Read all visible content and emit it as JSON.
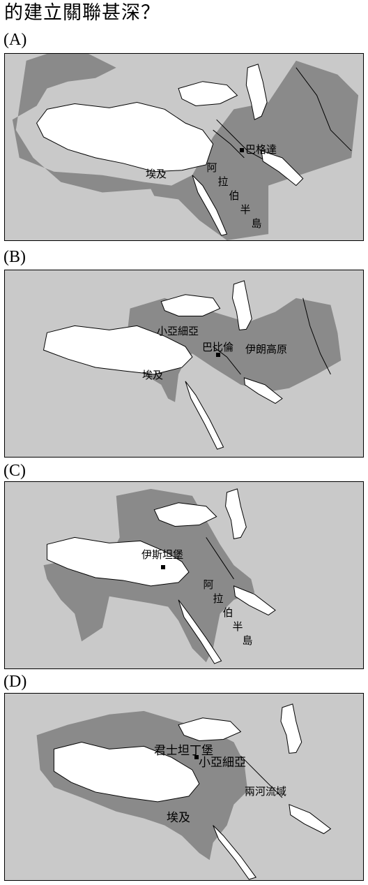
{
  "question": {
    "text": "的建立關聯甚深？"
  },
  "options": [
    {
      "label": "(A)",
      "places": {
        "capital": "巴格達",
        "egypt": "埃及",
        "arabia": [
          "阿",
          "拉",
          "伯",
          "半",
          "島"
        ]
      }
    },
    {
      "label": "(B)",
      "places": {
        "asia_minor": "小亞細亞",
        "capital": "巴比倫",
        "iran": "伊朗高原",
        "egypt": "埃及"
      }
    },
    {
      "label": "(C)",
      "places": {
        "capital": "伊斯坦堡",
        "arabia": [
          "阿",
          "拉",
          "伯",
          "半",
          "島"
        ]
      }
    },
    {
      "label": "(D)",
      "places": {
        "capital": "君士坦丁堡",
        "asia_minor": "小亞細亞",
        "mesopotamia": "兩河流域",
        "egypt": "埃及"
      }
    }
  ],
  "colors": {
    "sea": "#ffffff",
    "land": "#c9c9c9",
    "empire": "#8a8a8a",
    "border": "#000000"
  }
}
